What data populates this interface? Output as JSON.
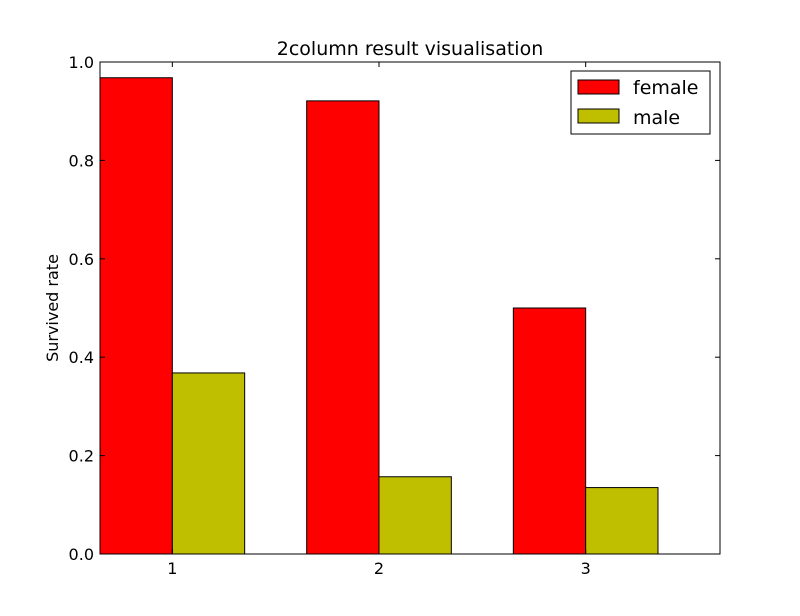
{
  "chart_data": {
    "type": "bar",
    "title": "2column result visualisation",
    "xlabel": "",
    "ylabel": "Survived rate",
    "categories": [
      "1",
      "2",
      "3"
    ],
    "series": [
      {
        "name": "female",
        "values": [
          0.968,
          0.921,
          0.5
        ],
        "color": "#ff0000"
      },
      {
        "name": "male",
        "values": [
          0.368,
          0.157,
          0.135
        ],
        "color": "#bfbf00"
      }
    ],
    "ylim": [
      0.0,
      1.0
    ],
    "yticks": [
      "0.0",
      "0.2",
      "0.4",
      "0.6",
      "0.8",
      "1.0"
    ],
    "legend_position": "top-right",
    "grid": false
  }
}
